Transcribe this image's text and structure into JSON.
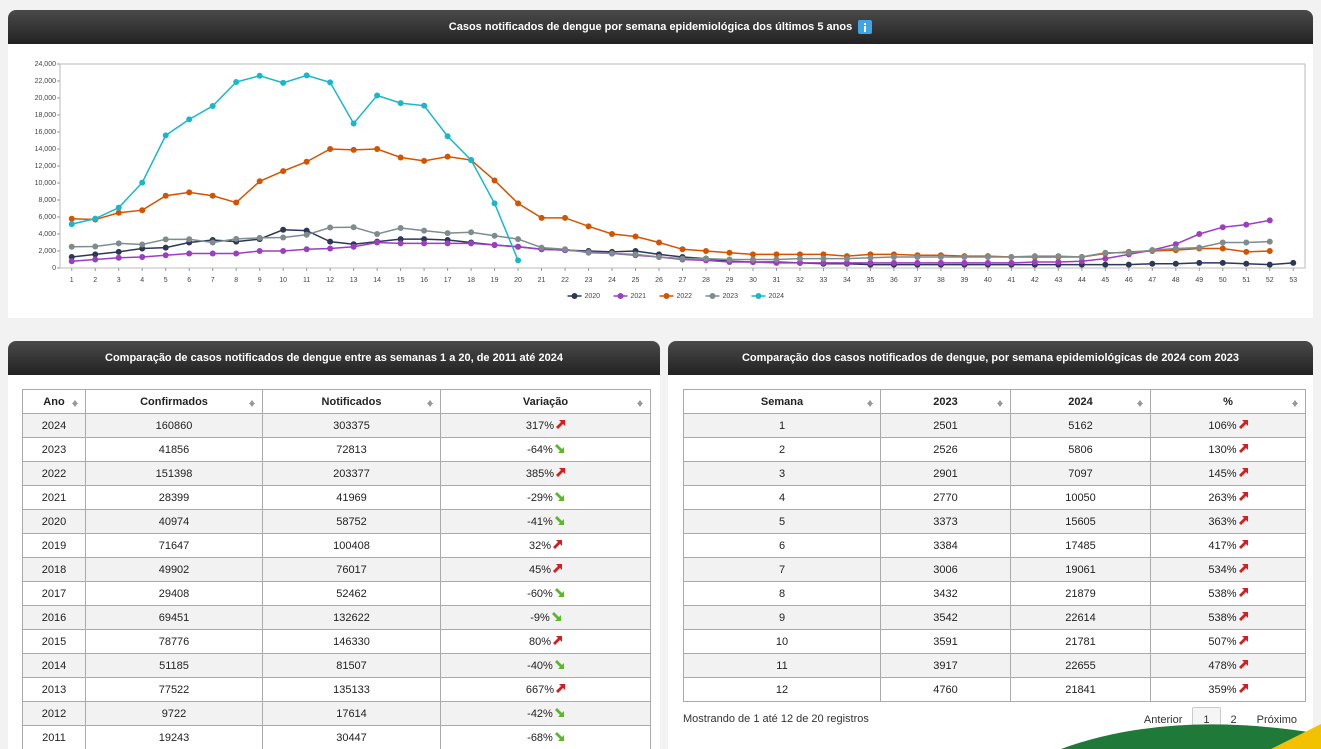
{
  "chart_data": {
    "type": "line",
    "title": "Casos notificados de dengue por semana epidemiológica dos últimos 5 anos",
    "categories": [
      "1",
      "2",
      "3",
      "4",
      "5",
      "6",
      "7",
      "8",
      "9",
      "10",
      "11",
      "12",
      "13",
      "14",
      "15",
      "16",
      "17",
      "18",
      "19",
      "20",
      "21",
      "22",
      "23",
      "24",
      "25",
      "26",
      "27",
      "28",
      "29",
      "30",
      "31",
      "32",
      "33",
      "34",
      "35",
      "36",
      "37",
      "38",
      "39",
      "40",
      "41",
      "42",
      "43",
      "44",
      "45",
      "46",
      "47",
      "48",
      "49",
      "50",
      "51",
      "52",
      "53"
    ],
    "series": [
      {
        "name": "2020",
        "color": "#2d3857",
        "values": [
          1300,
          1600,
          1900,
          2300,
          2400,
          3000,
          3300,
          3100,
          3400,
          4500,
          4400,
          3100,
          2800,
          3100,
          3400,
          3400,
          3300,
          3000,
          2700,
          2500,
          2200,
          2100,
          2000,
          1900,
          2000,
          1600,
          1300,
          1100,
          800,
          700,
          700,
          600,
          500,
          500,
          400,
          400,
          400,
          400,
          400,
          400,
          400,
          400,
          400,
          400,
          400,
          400,
          500,
          500,
          600,
          600,
          500,
          400,
          600
        ]
      },
      {
        "name": "2021",
        "color": "#9b3fc0",
        "values": [
          800,
          1000,
          1200,
          1300,
          1500,
          1700,
          1700,
          1700,
          2000,
          2000,
          2200,
          2300,
          2500,
          3000,
          2900,
          2900,
          2900,
          2900,
          2700,
          2500,
          2200,
          2100,
          1900,
          1700,
          1500,
          1300,
          1000,
          900,
          700,
          700,
          600,
          600,
          600,
          600,
          600,
          600,
          600,
          600,
          600,
          600,
          600,
          700,
          700,
          800,
          1100,
          1600,
          2100,
          2800,
          4000,
          4800,
          5100,
          5600,
          null
        ]
      },
      {
        "name": "2022",
        "color": "#d35400",
        "values": [
          5800,
          5700,
          6500,
          6800,
          8500,
          8900,
          8500,
          7700,
          10200,
          11400,
          12500,
          14000,
          13900,
          14000,
          13000,
          12600,
          13100,
          12700,
          10300,
          7600,
          5900,
          5900,
          4900,
          4000,
          3700,
          3000,
          2200,
          2000,
          1800,
          1600,
          1600,
          1600,
          1600,
          1400,
          1600,
          1600,
          1500,
          1500,
          1400,
          1400,
          1300,
          1300,
          1300,
          1300,
          1700,
          1900,
          2000,
          2100,
          2300,
          2300,
          1900,
          2000,
          null
        ]
      },
      {
        "name": "2023",
        "color": "#7f8c8d",
        "values": [
          2501,
          2526,
          2901,
          2770,
          3373,
          3384,
          3006,
          3432,
          3542,
          3591,
          3917,
          4760,
          4800,
          4000,
          4700,
          4400,
          4100,
          4200,
          3800,
          3400,
          2400,
          2200,
          1800,
          1700,
          1600,
          1300,
          1100,
          1100,
          1000,
          1000,
          1000,
          1100,
          1100,
          1100,
          1200,
          1300,
          1300,
          1300,
          1300,
          1300,
          1300,
          1400,
          1400,
          1300,
          1800,
          1800,
          2100,
          2300,
          2400,
          3000,
          3000,
          3100,
          null
        ]
      },
      {
        "name": "2024",
        "color": "#17b8c9",
        "values": [
          5162,
          5806,
          7097,
          10050,
          15605,
          17485,
          19061,
          21879,
          22614,
          21781,
          22655,
          21841,
          17000,
          20300,
          19400,
          19100,
          15500,
          12700,
          7600,
          900,
          null,
          null,
          null,
          null,
          null,
          null,
          null,
          null,
          null,
          null,
          null,
          null,
          null,
          null,
          null,
          null,
          null,
          null,
          null,
          null,
          null,
          null,
          null,
          null,
          null,
          null,
          null,
          null,
          null,
          null,
          null,
          null,
          null
        ]
      }
    ],
    "ylim": [
      0,
      24000
    ],
    "yticks": [
      0,
      {
        "value": 2000,
        "label": "2,000"
      },
      {
        "value": 4000,
        "label": "4,000"
      },
      {
        "value": 6000,
        "label": "6,000"
      },
      {
        "value": 8000,
        "label": "8,000"
      },
      {
        "value": 10000,
        "label": "10,000"
      },
      {
        "value": 12000,
        "label": "12,000"
      },
      {
        "value": 14000,
        "label": "14,000"
      },
      {
        "value": 16000,
        "label": "16,000"
      },
      {
        "value": 18000,
        "label": "18,000"
      },
      {
        "value": 20000,
        "label": "20,000"
      },
      {
        "value": 22000,
        "label": "22,000"
      },
      {
        "value": 24000,
        "label": "24,000"
      }
    ],
    "grid": false,
    "legend": "bottom"
  },
  "table1": {
    "title": "Comparação de casos notificados de dengue entre as semanas 1 a 20, de 2011 até 2024",
    "header": [
      "Ano",
      "Confirmados",
      "Notificados",
      "Variação"
    ],
    "rows": [
      [
        "2024",
        "160860",
        "303375",
        "317%"
      ],
      [
        "2023",
        "41856",
        "72813",
        "-64%"
      ],
      [
        "2022",
        "151398",
        "203377",
        "385%"
      ],
      [
        "2021",
        "28399",
        "41969",
        "-29%"
      ],
      [
        "2020",
        "40974",
        "58752",
        "-41%"
      ],
      [
        "2019",
        "71647",
        "100408",
        "32%"
      ],
      [
        "2018",
        "49902",
        "76017",
        "45%"
      ],
      [
        "2017",
        "29408",
        "52462",
        "-60%"
      ],
      [
        "2016",
        "69451",
        "132622",
        "-9%"
      ],
      [
        "2015",
        "78776",
        "146330",
        "80%"
      ],
      [
        "2014",
        "51185",
        "81507",
        "-40%"
      ],
      [
        "2013",
        "77522",
        "135133",
        "667%"
      ],
      [
        "2012",
        "9722",
        "17614",
        "-42%"
      ],
      [
        "2011",
        "19243",
        "30447",
        "-68%"
      ]
    ]
  },
  "table2": {
    "title": "Comparação dos casos notificados de dengue, por semana epidemiológicas de 2024 com 2023",
    "header": [
      "Semana",
      "2023",
      "2024",
      "%"
    ],
    "rows": [
      [
        "1",
        "2501",
        "5162",
        "106%"
      ],
      [
        "2",
        "2526",
        "5806",
        "130%"
      ],
      [
        "3",
        "2901",
        "7097",
        "145%"
      ],
      [
        "4",
        "2770",
        "10050",
        "263%"
      ],
      [
        "5",
        "3373",
        "15605",
        "363%"
      ],
      [
        "6",
        "3384",
        "17485",
        "417%"
      ],
      [
        "7",
        "3006",
        "19061",
        "534%"
      ],
      [
        "8",
        "3432",
        "21879",
        "538%"
      ],
      [
        "9",
        "3542",
        "22614",
        "538%"
      ],
      [
        "10",
        "3591",
        "21781",
        "507%"
      ],
      [
        "11",
        "3917",
        "22655",
        "478%"
      ],
      [
        "12",
        "4760",
        "21841",
        "359%"
      ]
    ],
    "info": "Mostrando de 1 até 12 de 20 registros",
    "pagination": [
      "Anterior",
      "1",
      "2",
      "Próximo"
    ]
  }
}
